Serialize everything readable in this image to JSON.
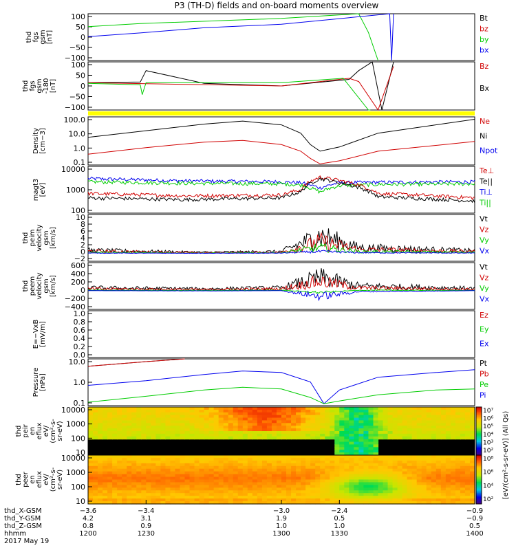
{
  "title": "P3 (TH-D) fields and on-board moments overview",
  "colors": {
    "black": "#000000",
    "red": "#d00000",
    "green": "#00cc00",
    "blue": "#0000ee",
    "yellow": "#ffff00"
  },
  "chart_data": [
    {
      "type": "line",
      "id": "fgs",
      "ylabel_lines": [
        "thd",
        "fgs",
        "gsm",
        "[nT]"
      ],
      "ylim": [
        -100,
        100
      ],
      "yticks": [
        "100",
        "50",
        "0",
        "−50",
        "−100"
      ],
      "legend": [
        "Bt",
        "bz",
        "by",
        "bx"
      ],
      "series": [
        {
          "name": "Bt",
          "color": "#000000",
          "x": [
            1200,
            1400
          ],
          "y": [
            null,
            null
          ]
        },
        {
          "name": "bz",
          "color": "#d00000",
          "x": [
            1200,
            1400
          ],
          "y": [
            null,
            null
          ]
        },
        {
          "name": "by",
          "color": "#00cc00",
          "x": [
            1200,
            1227,
            1300,
            1340,
            1345,
            1350
          ],
          "y": [
            45,
            58,
            80,
            100,
            20,
            -100
          ]
        },
        {
          "name": "bx",
          "color": "#0000ee",
          "x": [
            1200,
            1227,
            1260,
            1300,
            1356,
            1357,
            1358
          ],
          "y": [
            2,
            18,
            40,
            55,
            100,
            -100,
            100
          ]
        }
      ]
    },
    {
      "type": "line",
      "id": "fgs_gse",
      "ylabel_lines": [
        "thd",
        "fgs",
        "gsm",
        "-180",
        "[nT]"
      ],
      "ylim": [
        -120,
        100
      ],
      "yticks": [
        "100",
        "50",
        "0",
        "−50",
        "−100"
      ],
      "legend": [
        "Bz",
        "Bx"
      ],
      "series": [
        {
          "name": "Bx",
          "color": "#000000",
          "x": [
            1200,
            1227,
            1230,
            1260,
            1300,
            1335,
            1340,
            1347,
            1352,
            1358
          ],
          "y": [
            5,
            8,
            60,
            2,
            -10,
            20,
            60,
            100,
            -120,
            100
          ]
        },
        {
          "name": "Bz",
          "color": "#d00000",
          "x": [
            1200,
            1230,
            1300,
            1335,
            1340,
            1350,
            1358
          ],
          "y": [
            5,
            0,
            -10,
            25,
            10,
            -120,
            80
          ]
        },
        {
          "name": "By",
          "color": "#00cc00",
          "x": [
            1200,
            1227,
            1228,
            1230,
            1300,
            1332,
            1345,
            1346
          ],
          "y": [
            2,
            -5,
            -50,
            5,
            5,
            25,
            -120,
            -120
          ]
        }
      ]
    },
    {
      "type": "line",
      "id": "density",
      "ylabel_lines": [
        "Density",
        "[cm−3]"
      ],
      "yscale": "log",
      "ylim": [
        0.1,
        300
      ],
      "yticks": [
        "100.0",
        "10.0",
        "1.0",
        "0.1"
      ],
      "legend": [
        "Ne",
        "Ni",
        "Npot"
      ],
      "series": [
        {
          "name": "Ni",
          "color": "#000000",
          "x": [
            1200,
            1230,
            1260,
            1280,
            1300,
            1310,
            1315,
            1320,
            1330,
            1350,
            1400
          ],
          "y": [
            10,
            30,
            90,
            150,
            80,
            20,
            3,
            1,
            2,
            20,
            200
          ]
        },
        {
          "name": "Ne",
          "color": "#d00000",
          "x": [
            1200,
            1230,
            1260,
            1280,
            1300,
            1310,
            1315,
            1320,
            1330,
            1350,
            1400
          ],
          "y": [
            0.6,
            1.8,
            4.5,
            6,
            3,
            1,
            0.3,
            0.12,
            0.2,
            1,
            5
          ]
        }
      ]
    },
    {
      "type": "line",
      "id": "temperature",
      "ylabel_lines": [
        "magt3",
        "[eV]"
      ],
      "yscale": "log",
      "ylim": [
        100,
        10000
      ],
      "yticks": [
        "10000",
        "1000",
        "100"
      ],
      "legend": [
        "Te⊥",
        "Te||",
        "Ti⊥",
        "Ti||"
      ],
      "series": [
        {
          "name": "Ti⊥",
          "color": "#0000ee",
          "x": [
            1200,
            1250,
            1300,
            1310,
            1320,
            1330,
            1350,
            1400
          ],
          "y": [
            3000,
            2400,
            2200,
            2000,
            1200,
            2000,
            2100,
            2200
          ]
        },
        {
          "name": "Ti||",
          "color": "#00cc00",
          "x": [
            1200,
            1250,
            1300,
            1310,
            1320,
            1330,
            1350,
            1400
          ],
          "y": [
            2200,
            1900,
            1800,
            1600,
            800,
            1500,
            1700,
            1800
          ]
        },
        {
          "name": "Te⊥",
          "color": "#d00000",
          "x": [
            1200,
            1250,
            1300,
            1310,
            1320,
            1330,
            1350,
            1400
          ],
          "y": [
            700,
            550,
            600,
            1000,
            3500,
            2500,
            700,
            450
          ]
        },
        {
          "name": "Te||",
          "color": "#000000",
          "x": [
            1200,
            1250,
            1300,
            1310,
            1320,
            1330,
            1350,
            1400
          ],
          "y": [
            450,
            380,
            450,
            800,
            3000,
            2000,
            500,
            330
          ]
        }
      ]
    },
    {
      "type": "line",
      "id": "peim_velocity",
      "ylabel_lines": [
        "thd",
        "peim",
        "velocity",
        "gsm",
        "[km/s]"
      ],
      "ylim": [
        -2,
        10
      ],
      "yticks": [
        "10",
        "8",
        "6",
        "4",
        "2",
        "0",
        "−2"
      ],
      "legend": [
        "Vt",
        "Vz",
        "Vy",
        "Vx"
      ],
      "series": [
        {
          "name": "Vt",
          "color": "#000000",
          "x": [
            1200,
            1260,
            1300,
            1320,
            1340,
            1400
          ],
          "y": [
            0.8,
            0.3,
            0.5,
            4.5,
            1.5,
            0.7
          ]
        },
        {
          "name": "Vz",
          "color": "#d00000",
          "x": [
            1200,
            1260,
            1300,
            1320,
            1340,
            1400
          ],
          "y": [
            0.6,
            0.2,
            0.3,
            3,
            1,
            0.5
          ]
        },
        {
          "name": "Vy",
          "color": "#00cc00",
          "x": [
            1200,
            1260,
            1300,
            1320,
            1340,
            1400
          ],
          "y": [
            0.3,
            0.1,
            0.2,
            1.5,
            0.5,
            0.3
          ]
        },
        {
          "name": "Vx",
          "color": "#0000ee",
          "x": [
            1200,
            1260,
            1300,
            1320,
            1340,
            1400
          ],
          "y": [
            0.1,
            0.05,
            0.1,
            0.5,
            0.2,
            0.1
          ]
        }
      ]
    },
    {
      "type": "line",
      "id": "peem_velocity",
      "ylabel_lines": [
        "thd",
        "peem",
        "velocity",
        "gsm",
        "[km/s]"
      ],
      "ylim": [
        -400,
        600
      ],
      "yticks": [
        "600",
        "400",
        "200",
        "0",
        "−200",
        "−400"
      ],
      "legend": [
        "Vt",
        "Vz",
        "Vy",
        "Vx"
      ],
      "series": [
        {
          "name": "Vt",
          "color": "#000000",
          "x": [
            1200,
            1260,
            1300,
            1320,
            1340,
            1400
          ],
          "y": [
            60,
            40,
            60,
            280,
            100,
            50
          ]
        },
        {
          "name": "Vz",
          "color": "#d00000",
          "x": [
            1200,
            1260,
            1300,
            1320,
            1340,
            1400
          ],
          "y": [
            40,
            25,
            40,
            200,
            60,
            30
          ]
        },
        {
          "name": "Vy",
          "color": "#00cc00",
          "x": [
            1200,
            1260,
            1300,
            1320,
            1340,
            1400
          ],
          "y": [
            10,
            5,
            10,
            -40,
            10,
            5
          ]
        },
        {
          "name": "Vx",
          "color": "#0000ee",
          "x": [
            1200,
            1260,
            1300,
            1320,
            1340,
            1400
          ],
          "y": [
            0,
            -5,
            0,
            -120,
            -20,
            0
          ]
        }
      ]
    },
    {
      "type": "line",
      "id": "efield",
      "ylabel_lines": [
        "E=−VxB",
        "[mV/m]"
      ],
      "ylim": [
        0,
        1.0
      ],
      "yticks": [
        "1.0",
        "0.8",
        "0.6",
        "0.4",
        "0.2",
        "0.0"
      ],
      "legend": [
        "Ez",
        "Ey",
        "Ex"
      ],
      "series": []
    },
    {
      "type": "line",
      "id": "pressure",
      "ylabel_lines": [
        "Pressure",
        "[nPa]"
      ],
      "yscale": "log",
      "ylim": [
        0.03,
        30
      ],
      "yticks": [
        "10.0",
        "1.0",
        "0.1"
      ],
      "legend": [
        "Pt",
        "Pb",
        "Pe",
        "Pi"
      ],
      "series": [
        {
          "name": "Pt",
          "color": "#000000",
          "x": [
            1200,
            1230,
            1250
          ],
          "y": [
            10,
            20,
            30
          ]
        },
        {
          "name": "Pb",
          "color": "#d00000",
          "x": [
            1200,
            1230,
            1250
          ],
          "y": [
            10,
            20,
            30
          ]
        },
        {
          "name": "Pi",
          "color": "#0000ee",
          "x": [
            1200,
            1230,
            1260,
            1280,
            1300,
            1315,
            1322,
            1330,
            1350,
            1380,
            1400
          ],
          "y": [
            0.6,
            1.2,
            3,
            5,
            4,
            1,
            0.04,
            0.3,
            2,
            4,
            6
          ]
        },
        {
          "name": "Pe",
          "color": "#00cc00",
          "x": [
            1200,
            1230,
            1260,
            1280,
            1300,
            1315,
            1322,
            1330,
            1350,
            1380,
            1400
          ],
          "y": [
            0.05,
            0.12,
            0.3,
            0.45,
            0.35,
            0.1,
            0.04,
            0.06,
            0.15,
            0.3,
            0.35
          ]
        }
      ]
    },
    {
      "type": "heatmap",
      "id": "peir_eflux",
      "ylabel_lines": [
        "thd",
        "peir",
        "en",
        "eflux",
        "eV/",
        "(cm²-s-",
        "sr-eV)"
      ],
      "yscale": "log",
      "ylim": [
        5,
        30000
      ],
      "yticks": [
        "10000",
        "1000",
        "100",
        "10"
      ]
    },
    {
      "type": "heatmap",
      "id": "peer_eflux",
      "ylabel_lines": [
        "thd",
        "peer",
        "en",
        "eflux",
        "eV/",
        "(cm²-s-",
        "sr-eV)"
      ],
      "yscale": "log",
      "ylim": [
        5,
        30000
      ],
      "yticks": [
        "10000",
        "1000",
        "100",
        "10"
      ]
    }
  ],
  "colorbars": [
    {
      "ticks": [
        "10⁷",
        "10⁶",
        "10⁵",
        "10⁴",
        "10³",
        "10²"
      ],
      "label": "[eV/(cm²-s-sr-eV)] (All Qs)"
    },
    {
      "ticks": [
        "10⁸",
        "10⁶",
        "10⁴",
        "10²"
      ],
      "label": "[eV/(cm²-s-sr-eV)]"
    }
  ],
  "xaxis": {
    "ticks": [
      1200,
      1230,
      1300,
      1330,
      1400
    ],
    "rows": [
      {
        "label": "thd_X-GSM",
        "values": [
          "−3.6",
          "−3.4",
          "−3.0",
          "−2.4",
          "−0.9"
        ]
      },
      {
        "label": "thd_Y-GSM",
        "values": [
          "4.2",
          "3.1",
          "1.9",
          "0.5",
          "−0.9"
        ]
      },
      {
        "label": "thd_Z-GSM",
        "values": [
          "0.8",
          "0.9",
          "1.0",
          "1.0",
          "0.5"
        ]
      },
      {
        "label": "hhmm",
        "values": [
          "1200",
          "1230",
          "1300",
          "1330",
          "1400"
        ]
      }
    ],
    "date": "2017 May 19"
  }
}
